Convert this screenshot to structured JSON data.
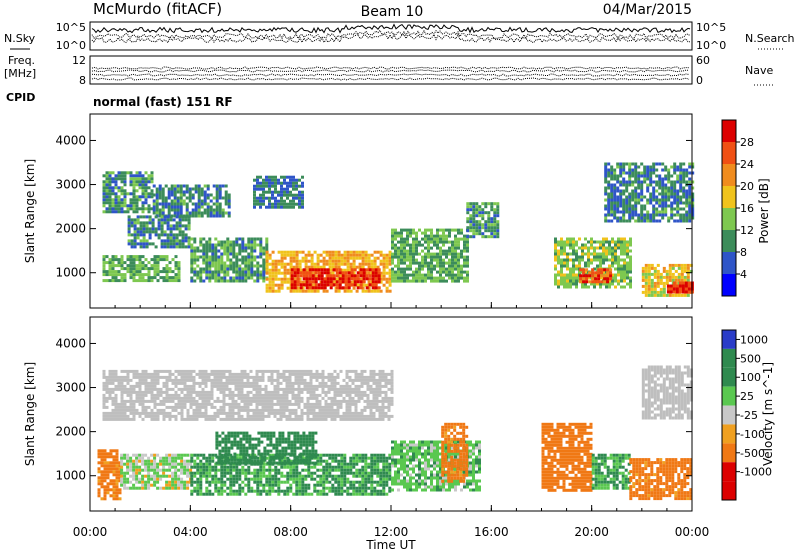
{
  "header": {
    "station": "McMurdo (fitACF)",
    "beam": "Beam 10",
    "date": "04/Mar/2015"
  },
  "noise_panel": {
    "left_label": "N.Sky",
    "right_label": "N.Search",
    "left_ticks": [
      "10^5",
      "10^0"
    ],
    "right_ticks": [
      "10^5",
      "10^0"
    ]
  },
  "freq_panel": {
    "left_label_1": "Freq.",
    "left_label_2": "[MHz]",
    "right_label": "Nave",
    "left_ticks": [
      "12",
      "8"
    ],
    "right_ticks": [
      "60",
      "0"
    ]
  },
  "cpid": {
    "label": "CPID",
    "value": "normal (fast) 151 RF"
  },
  "colors": {
    "power_scale": [
      "#0000ff",
      "#2f55c8",
      "#3c8c5a",
      "#7ec850",
      "#f0c31c",
      "#f08c1e",
      "#f05014",
      "#dc0000"
    ],
    "velocity_scale": [
      "#2a3cc8",
      "#2f8a4f",
      "#5ac850",
      "#c8c8c8",
      "#f0a020",
      "#f07814",
      "#dc0000"
    ],
    "ground_scatter": "#bebebe"
  },
  "chart_data": [
    {
      "type": "heatmap",
      "title": "Power",
      "ylabel": "Slant Range [km]",
      "xlabel": "Time UT",
      "x_ticks": [
        "00:00",
        "04:00",
        "08:00",
        "12:00",
        "16:00",
        "20:00",
        "00:00"
      ],
      "y_ticks": [
        1000,
        2000,
        3000,
        4000
      ],
      "ylim": [
        200,
        4600
      ],
      "colorbar": {
        "label": "Power [dB]",
        "ticks": [
          "28",
          "24",
          "20",
          "16",
          "12",
          "8",
          "4"
        ],
        "range": [
          0,
          32
        ]
      },
      "regions": [
        {
          "t0": 0.5,
          "t1": 2.5,
          "r0": 2400,
          "r1": 3300,
          "v": 10
        },
        {
          "t0": 2.5,
          "t1": 5.5,
          "r0": 2300,
          "r1": 3000,
          "v": 9
        },
        {
          "t0": 6.5,
          "t1": 8.5,
          "r0": 2500,
          "r1": 3200,
          "v": 8
        },
        {
          "t0": 1.5,
          "t1": 4.0,
          "r0": 1600,
          "r1": 2300,
          "v": 9
        },
        {
          "t0": 0.5,
          "t1": 3.5,
          "r0": 800,
          "r1": 1400,
          "v": 12
        },
        {
          "t0": 4.0,
          "t1": 7.0,
          "r0": 800,
          "r1": 1800,
          "v": 11
        },
        {
          "t0": 7.0,
          "t1": 12.0,
          "r0": 600,
          "r1": 1500,
          "v": 20
        },
        {
          "t0": 8.0,
          "t1": 11.5,
          "r0": 650,
          "r1": 1100,
          "v": 29
        },
        {
          "t0": 12.0,
          "t1": 15.0,
          "r0": 800,
          "r1": 2000,
          "v": 12
        },
        {
          "t0": 15.0,
          "t1": 16.2,
          "r0": 1800,
          "r1": 2600,
          "v": 10
        },
        {
          "t0": 18.5,
          "t1": 21.5,
          "r0": 700,
          "r1": 1800,
          "v": 14
        },
        {
          "t0": 19.5,
          "t1": 20.8,
          "r0": 800,
          "r1": 1100,
          "v": 26
        },
        {
          "t0": 20.5,
          "t1": 24.0,
          "r0": 2200,
          "r1": 3500,
          "v": 9
        },
        {
          "t0": 22.0,
          "t1": 24.0,
          "r0": 500,
          "r1": 1200,
          "v": 18
        },
        {
          "t0": 23.0,
          "t1": 24.0,
          "r0": 550,
          "r1": 800,
          "v": 28
        }
      ]
    },
    {
      "type": "heatmap",
      "title": "Velocity",
      "ylabel": "Slant Range [km]",
      "xlabel": "Time UT",
      "x_ticks": [
        "00:00",
        "04:00",
        "08:00",
        "12:00",
        "16:00",
        "20:00",
        "00:00"
      ],
      "y_ticks": [
        1000,
        2000,
        3000,
        4000
      ],
      "ylim": [
        200,
        4600
      ],
      "colorbar": {
        "label": "Velocity [m s^-1]",
        "ticks": [
          "1000",
          "500",
          "100",
          "25",
          "-25",
          "-100",
          "-500",
          "-1000"
        ],
        "range": [
          -1200,
          1200
        ]
      },
      "regions": [
        {
          "t0": 0.5,
          "t1": 12.0,
          "r0": 2300,
          "r1": 3400,
          "v": 0,
          "gs": true
        },
        {
          "t0": 22.0,
          "t1": 24.0,
          "r0": 2300,
          "r1": 3500,
          "v": 0,
          "gs": true
        },
        {
          "t0": 0.3,
          "t1": 1.2,
          "r0": 500,
          "r1": 1600,
          "v": -150
        },
        {
          "t0": 1.2,
          "t1": 4.0,
          "r0": 700,
          "r1": 1500,
          "v": 20
        },
        {
          "t0": 4.0,
          "t1": 12.0,
          "r0": 600,
          "r1": 1500,
          "v": 120
        },
        {
          "t0": 5.0,
          "t1": 9.0,
          "r0": 1300,
          "r1": 2000,
          "v": 300
        },
        {
          "t0": 12.0,
          "t1": 15.5,
          "r0": 700,
          "r1": 1800,
          "v": 60
        },
        {
          "t0": 14.0,
          "t1": 15.0,
          "r0": 900,
          "r1": 2200,
          "v": -150
        },
        {
          "t0": 18.0,
          "t1": 20.0,
          "r0": 700,
          "r1": 2200,
          "v": -200
        },
        {
          "t0": 20.0,
          "t1": 21.5,
          "r0": 700,
          "r1": 1500,
          "v": 100
        },
        {
          "t0": 21.5,
          "t1": 24.0,
          "r0": 500,
          "r1": 1400,
          "v": -150
        }
      ]
    }
  ]
}
